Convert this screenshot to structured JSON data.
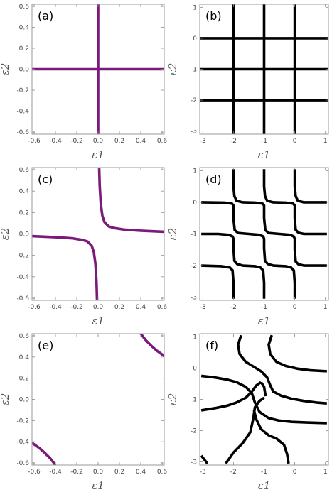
{
  "chart_data": [
    {
      "panel": "(a)",
      "type": "line",
      "xlabel": "ε1",
      "ylabel": "ε2",
      "xlim": [
        -0.62,
        0.62
      ],
      "ylim": [
        -0.62,
        0.62
      ],
      "xticks": [
        -0.6,
        -0.4,
        -0.2,
        0.0,
        0.2,
        0.4,
        0.6
      ],
      "yticks": [
        -0.6,
        -0.4,
        -0.2,
        0.0,
        0.2,
        0.4,
        0.6
      ],
      "xtick_labels": [
        "-0.6",
        "-0.4",
        "-0.2",
        "0.0",
        "0.2",
        "0.4",
        "0.6"
      ],
      "ytick_labels": [
        "-0.6",
        "-0.4",
        "-0.2",
        "0.0",
        "0.2",
        "0.4",
        "0.6"
      ],
      "color": "#7b1a7b",
      "series": [
        {
          "points": [
            [
              -0.62,
              0
            ],
            [
              0.62,
              0
            ]
          ]
        },
        {
          "points": [
            [
              0,
              -0.62
            ],
            [
              0,
              0.62
            ]
          ]
        }
      ]
    },
    {
      "panel": "(b)",
      "type": "line",
      "xlabel": "ε1",
      "ylabel": "ε2",
      "xlim": [
        -3.1,
        1.1
      ],
      "ylim": [
        -3.1,
        1.1
      ],
      "xticks": [
        -3,
        -2,
        -1,
        0,
        1
      ],
      "yticks": [
        -3,
        -2,
        -1,
        0,
        1
      ],
      "xtick_labels": [
        "-3",
        "-2",
        "-1",
        "0",
        "1"
      ],
      "ytick_labels": [
        "-3",
        "-2",
        "-1",
        "0",
        "1"
      ],
      "color": "#000000",
      "series": [
        {
          "points": [
            [
              -2,
              -3.1
            ],
            [
              -2,
              1.1
            ]
          ]
        },
        {
          "points": [
            [
              -1,
              -3.1
            ],
            [
              -1,
              1.1
            ]
          ]
        },
        {
          "points": [
            [
              0,
              -3.1
            ],
            [
              0,
              1.1
            ]
          ]
        },
        {
          "points": [
            [
              -3.1,
              0
            ],
            [
              1.1,
              0
            ]
          ]
        },
        {
          "points": [
            [
              -3.1,
              -1
            ],
            [
              1.1,
              -1
            ]
          ]
        },
        {
          "points": [
            [
              -3.1,
              -2
            ],
            [
              1.1,
              -2
            ]
          ]
        }
      ]
    },
    {
      "panel": "(c)",
      "type": "line",
      "xlabel": "ε1",
      "ylabel": "ε2",
      "xlim": [
        -0.62,
        0.62
      ],
      "ylim": [
        -0.62,
        0.62
      ],
      "xticks": [
        -0.6,
        -0.4,
        -0.2,
        0.0,
        0.2,
        0.4,
        0.6
      ],
      "yticks": [
        -0.6,
        -0.4,
        -0.2,
        0.0,
        0.2,
        0.4,
        0.6
      ],
      "xtick_labels": [
        "-0.6",
        "-0.4",
        "-0.2",
        "0.0",
        "0.2",
        "0.4",
        "0.6"
      ],
      "ytick_labels": [
        "-0.6",
        "-0.4",
        "-0.2",
        "0.0",
        "0.2",
        "0.4",
        "0.6"
      ],
      "color": "#7b1a7b",
      "series": [
        {
          "points": [
            [
              0.01,
              0.62
            ],
            [
              0.015,
              0.45
            ],
            [
              0.025,
              0.28
            ],
            [
              0.04,
              0.17
            ],
            [
              0.06,
              0.11
            ],
            [
              0.1,
              0.07
            ],
            [
              0.15,
              0.055
            ],
            [
              0.25,
              0.04
            ],
            [
              0.4,
              0.03
            ],
            [
              0.62,
              0.02
            ]
          ]
        },
        {
          "points": [
            [
              -0.62,
              -0.02
            ],
            [
              -0.4,
              -0.03
            ],
            [
              -0.25,
              -0.04
            ],
            [
              -0.15,
              -0.055
            ],
            [
              -0.1,
              -0.07
            ],
            [
              -0.06,
              -0.11
            ],
            [
              -0.04,
              -0.17
            ],
            [
              -0.025,
              -0.28
            ],
            [
              -0.015,
              -0.45
            ],
            [
              -0.01,
              -0.62
            ]
          ]
        }
      ]
    },
    {
      "panel": "(d)",
      "type": "line",
      "xlabel": "ε1",
      "ylabel": "ε2",
      "xlim": [
        -3.1,
        1.1
      ],
      "ylim": [
        -3.1,
        1.1
      ],
      "xticks": [
        -3,
        -2,
        -1,
        0,
        1
      ],
      "yticks": [
        -3,
        -2,
        -1,
        0,
        1
      ],
      "xtick_labels": [
        "-3",
        "-2",
        "-1",
        "0",
        "1"
      ],
      "ytick_labels": [
        "-3",
        "-2",
        "-1",
        "0",
        "1"
      ],
      "color": "#000000",
      "series": [
        {
          "points": [
            [
              -2.0,
              -3.05
            ],
            [
              -2.0,
              -2.55
            ],
            [
              -2.03,
              -2.15
            ],
            [
              -2.12,
              -2.06
            ],
            [
              -2.4,
              -2.02
            ],
            [
              -3.05,
              -2.0
            ]
          ]
        },
        {
          "points": [
            [
              -1.0,
              -3.05
            ],
            [
              -1.0,
              -2.55
            ],
            [
              -1.03,
              -2.15
            ],
            [
              -1.12,
              -2.06
            ],
            [
              -1.3,
              -2.02
            ],
            [
              -1.7,
              -2.0
            ],
            [
              -1.88,
              -1.95
            ],
            [
              -1.97,
              -1.85
            ],
            [
              -2.0,
              -1.45
            ],
            [
              -2.0,
              -1.15
            ],
            [
              -2.03,
              -1.08
            ],
            [
              -2.15,
              -1.03
            ],
            [
              -2.5,
              -1.0
            ],
            [
              -3.05,
              -1.0
            ]
          ]
        },
        {
          "points": [
            [
              0.0,
              -3.05
            ],
            [
              0.0,
              -2.55
            ],
            [
              -0.03,
              -2.15
            ],
            [
              -0.12,
              -2.06
            ],
            [
              -0.3,
              -2.02
            ],
            [
              -0.7,
              -2.0
            ],
            [
              -0.88,
              -1.95
            ],
            [
              -0.97,
              -1.85
            ],
            [
              -1.0,
              -1.45
            ],
            [
              -1.0,
              -1.15
            ],
            [
              -1.03,
              -1.08
            ],
            [
              -1.15,
              -1.03
            ],
            [
              -1.5,
              -1.0
            ],
            [
              -1.85,
              -0.97
            ],
            [
              -1.96,
              -0.88
            ],
            [
              -2.0,
              -0.5
            ],
            [
              -2.0,
              -0.1
            ],
            [
              -2.05,
              -0.04
            ],
            [
              -2.3,
              -0.01
            ],
            [
              -3.05,
              0.0
            ]
          ]
        },
        {
          "points": [
            [
              1.05,
              -2.0
            ],
            [
              0.3,
              -2.0
            ],
            [
              0.12,
              -1.96
            ],
            [
              0.03,
              -1.87
            ],
            [
              0.0,
              -1.5
            ],
            [
              0.0,
              -1.15
            ],
            [
              -0.03,
              -1.08
            ],
            [
              -0.15,
              -1.03
            ],
            [
              -0.5,
              -1.0
            ],
            [
              -0.85,
              -0.97
            ],
            [
              -0.96,
              -0.88
            ],
            [
              -1.0,
              -0.5
            ],
            [
              -1.0,
              -0.1
            ],
            [
              -1.05,
              -0.04
            ],
            [
              -1.3,
              -0.01
            ],
            [
              -1.7,
              0.0
            ],
            [
              -1.9,
              0.05
            ],
            [
              -1.97,
              0.2
            ],
            [
              -2.0,
              0.5
            ],
            [
              -2.0,
              1.05
            ]
          ]
        },
        {
          "points": [
            [
              1.05,
              -1.0
            ],
            [
              0.3,
              -1.0
            ],
            [
              0.12,
              -0.96
            ],
            [
              0.03,
              -0.87
            ],
            [
              0.0,
              -0.5
            ],
            [
              0.0,
              -0.1
            ],
            [
              -0.05,
              -0.04
            ],
            [
              -0.3,
              -0.01
            ],
            [
              -0.7,
              0.0
            ],
            [
              -0.9,
              0.05
            ],
            [
              -0.97,
              0.2
            ],
            [
              -1.0,
              0.5
            ],
            [
              -1.0,
              1.05
            ]
          ]
        },
        {
          "points": [
            [
              1.05,
              0.0
            ],
            [
              0.3,
              0.0
            ],
            [
              0.1,
              0.05
            ],
            [
              0.03,
              0.2
            ],
            [
              0.0,
              0.5
            ],
            [
              0.0,
              1.05
            ]
          ]
        }
      ]
    },
    {
      "panel": "(e)",
      "type": "line",
      "xlabel": "ε1",
      "ylabel": "ε2",
      "xlim": [
        -0.62,
        0.62
      ],
      "ylim": [
        -0.62,
        0.62
      ],
      "xticks": [
        -0.6,
        -0.4,
        -0.2,
        0.0,
        0.2,
        0.4,
        0.6
      ],
      "yticks": [
        -0.6,
        -0.4,
        -0.2,
        0.0,
        0.2,
        0.4,
        0.6
      ],
      "xtick_labels": [
        "-0.6",
        "-0.4",
        "-0.2",
        "0.0",
        "0.2",
        "0.4",
        "0.6"
      ],
      "ytick_labels": [
        "-0.6",
        "-0.4",
        "-0.2",
        "0.0",
        "0.2",
        "0.4",
        "0.6"
      ],
      "color": "#7b1a7b",
      "series": [
        {
          "points": [
            [
              0.4,
              0.62
            ],
            [
              0.45,
              0.555
            ],
            [
              0.5,
              0.505
            ],
            [
              0.55,
              0.46
            ],
            [
              0.62,
              0.41
            ]
          ]
        },
        {
          "points": [
            [
              -0.62,
              -0.41
            ],
            [
              -0.55,
              -0.46
            ],
            [
              -0.5,
              -0.505
            ],
            [
              -0.45,
              -0.555
            ],
            [
              -0.4,
              -0.62
            ]
          ]
        }
      ]
    },
    {
      "panel": "(f)",
      "type": "line",
      "xlabel": "ε1",
      "ylabel": "ε2",
      "xlim": [
        -3.1,
        1.1
      ],
      "ylim": [
        -3.1,
        1.1
      ],
      "xticks": [
        -3,
        -2,
        -1,
        0,
        1
      ],
      "yticks": [
        -3,
        -2,
        -1,
        0,
        1
      ],
      "xtick_labels": [
        "-3",
        "-2",
        "-1",
        "0",
        "1"
      ],
      "ytick_labels": [
        "-3",
        "-2",
        "-1",
        "0",
        "1"
      ],
      "color": "#000000",
      "series": [
        {
          "points": [
            [
              -1.75,
              1.05
            ],
            [
              -1.85,
              0.75
            ],
            [
              -1.8,
              0.45
            ],
            [
              -1.6,
              0.2
            ],
            [
              -1.35,
              0.05
            ],
            [
              -1.1,
              -0.1
            ],
            [
              -0.9,
              -0.3
            ],
            [
              -0.8,
              -0.55
            ],
            [
              -0.7,
              -0.75
            ],
            [
              -0.45,
              -0.88
            ],
            [
              -0.1,
              -0.98
            ],
            [
              0.3,
              -1.05
            ],
            [
              0.7,
              -1.1
            ],
            [
              1.05,
              -1.13
            ]
          ]
        },
        {
          "points": [
            [
              -0.75,
              1.05
            ],
            [
              -0.85,
              0.75
            ],
            [
              -0.8,
              0.45
            ],
            [
              -0.6,
              0.2
            ],
            [
              -0.3,
              0.07
            ],
            [
              0.1,
              -0.02
            ],
            [
              0.5,
              -0.07
            ],
            [
              1.05,
              -0.1
            ]
          ]
        },
        {
          "points": [
            [
              -3.05,
              -0.25
            ],
            [
              -2.6,
              -0.3
            ],
            [
              -2.2,
              -0.37
            ],
            [
              -1.9,
              -0.45
            ],
            [
              -1.6,
              -0.6
            ],
            [
              -1.4,
              -0.8
            ],
            [
              -1.3,
              -1.1
            ],
            [
              -1.15,
              -1.4
            ],
            [
              -0.85,
              -1.6
            ],
            [
              -0.5,
              -1.68
            ],
            [
              -0.1,
              -1.72
            ],
            [
              0.4,
              -1.74
            ],
            [
              1.05,
              -1.76
            ]
          ]
        },
        {
          "points": [
            [
              -3.05,
              -1.35
            ],
            [
              -2.6,
              -1.28
            ],
            [
              -2.2,
              -1.2
            ],
            [
              -1.9,
              -1.1
            ],
            [
              -1.6,
              -0.95
            ],
            [
              -1.4,
              -0.75
            ],
            [
              -1.25,
              -0.55
            ],
            [
              -1.1,
              -0.45
            ]
          ]
        },
        {
          "points": [
            [
              -1.1,
              -0.45
            ],
            [
              -1.0,
              -0.6
            ],
            [
              -0.95,
              -0.9
            ]
          ]
        },
        {
          "points": [
            [
              -2.25,
              -3.05
            ],
            [
              -2.0,
              -2.7
            ],
            [
              -1.7,
              -2.4
            ],
            [
              -1.45,
              -2.05
            ],
            [
              -1.35,
              -1.6
            ],
            [
              -1.3,
              -1.25
            ],
            [
              -1.15,
              -1.05
            ],
            [
              -1.0,
              -0.95
            ]
          ]
        },
        {
          "points": [
            [
              -0.2,
              -3.05
            ],
            [
              -0.25,
              -2.75
            ],
            [
              -0.35,
              -2.45
            ],
            [
              -0.6,
              -2.25
            ],
            [
              -0.85,
              -2.15
            ],
            [
              -1.1,
              -1.95
            ],
            [
              -1.25,
              -1.65
            ],
            [
              -1.33,
              -1.35
            ]
          ]
        },
        {
          "points": [
            [
              -3.05,
              -2.8
            ],
            [
              -2.85,
              -3.05
            ]
          ]
        }
      ]
    }
  ]
}
